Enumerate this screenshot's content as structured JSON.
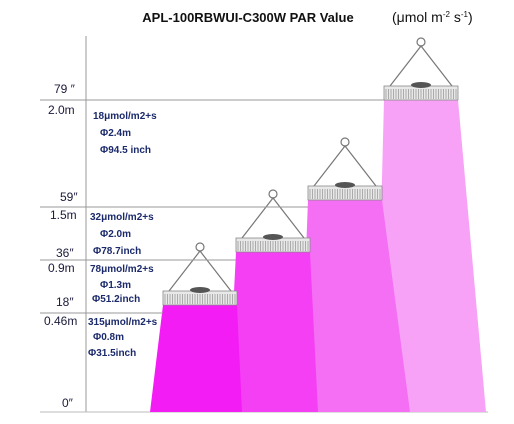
{
  "title": "APL-100RBWUI-C300W  PAR Value",
  "unit": [
    "(μmol m",
    "-2",
    " s",
    "-1",
    ")"
  ],
  "levels": [
    {
      "inch": "79 ″",
      "meter": "2.0m",
      "par": "18μmol/m2+s",
      "diameter_m": "Φ2.4m",
      "diameter_inch": "Φ94.5 inch"
    },
    {
      "inch": "59″",
      "meter": "1.5m",
      "par": "32μmol/m2+s",
      "diameter_m": "Φ2.0m",
      "diameter_inch": "Φ78.7inch"
    },
    {
      "inch": "36″",
      "meter": "0.9m",
      "par": "78μmol/m2+s",
      "diameter_m": "Φ1.3m",
      "diameter_inch": "Φ51.2inch"
    },
    {
      "inch": "18″",
      "meter": "0.46m",
      "par": "315μmol/m2+s",
      "diameter_m": "Φ0.8m",
      "diameter_inch": "Φ31.5inch"
    }
  ],
  "floor": "0″"
}
